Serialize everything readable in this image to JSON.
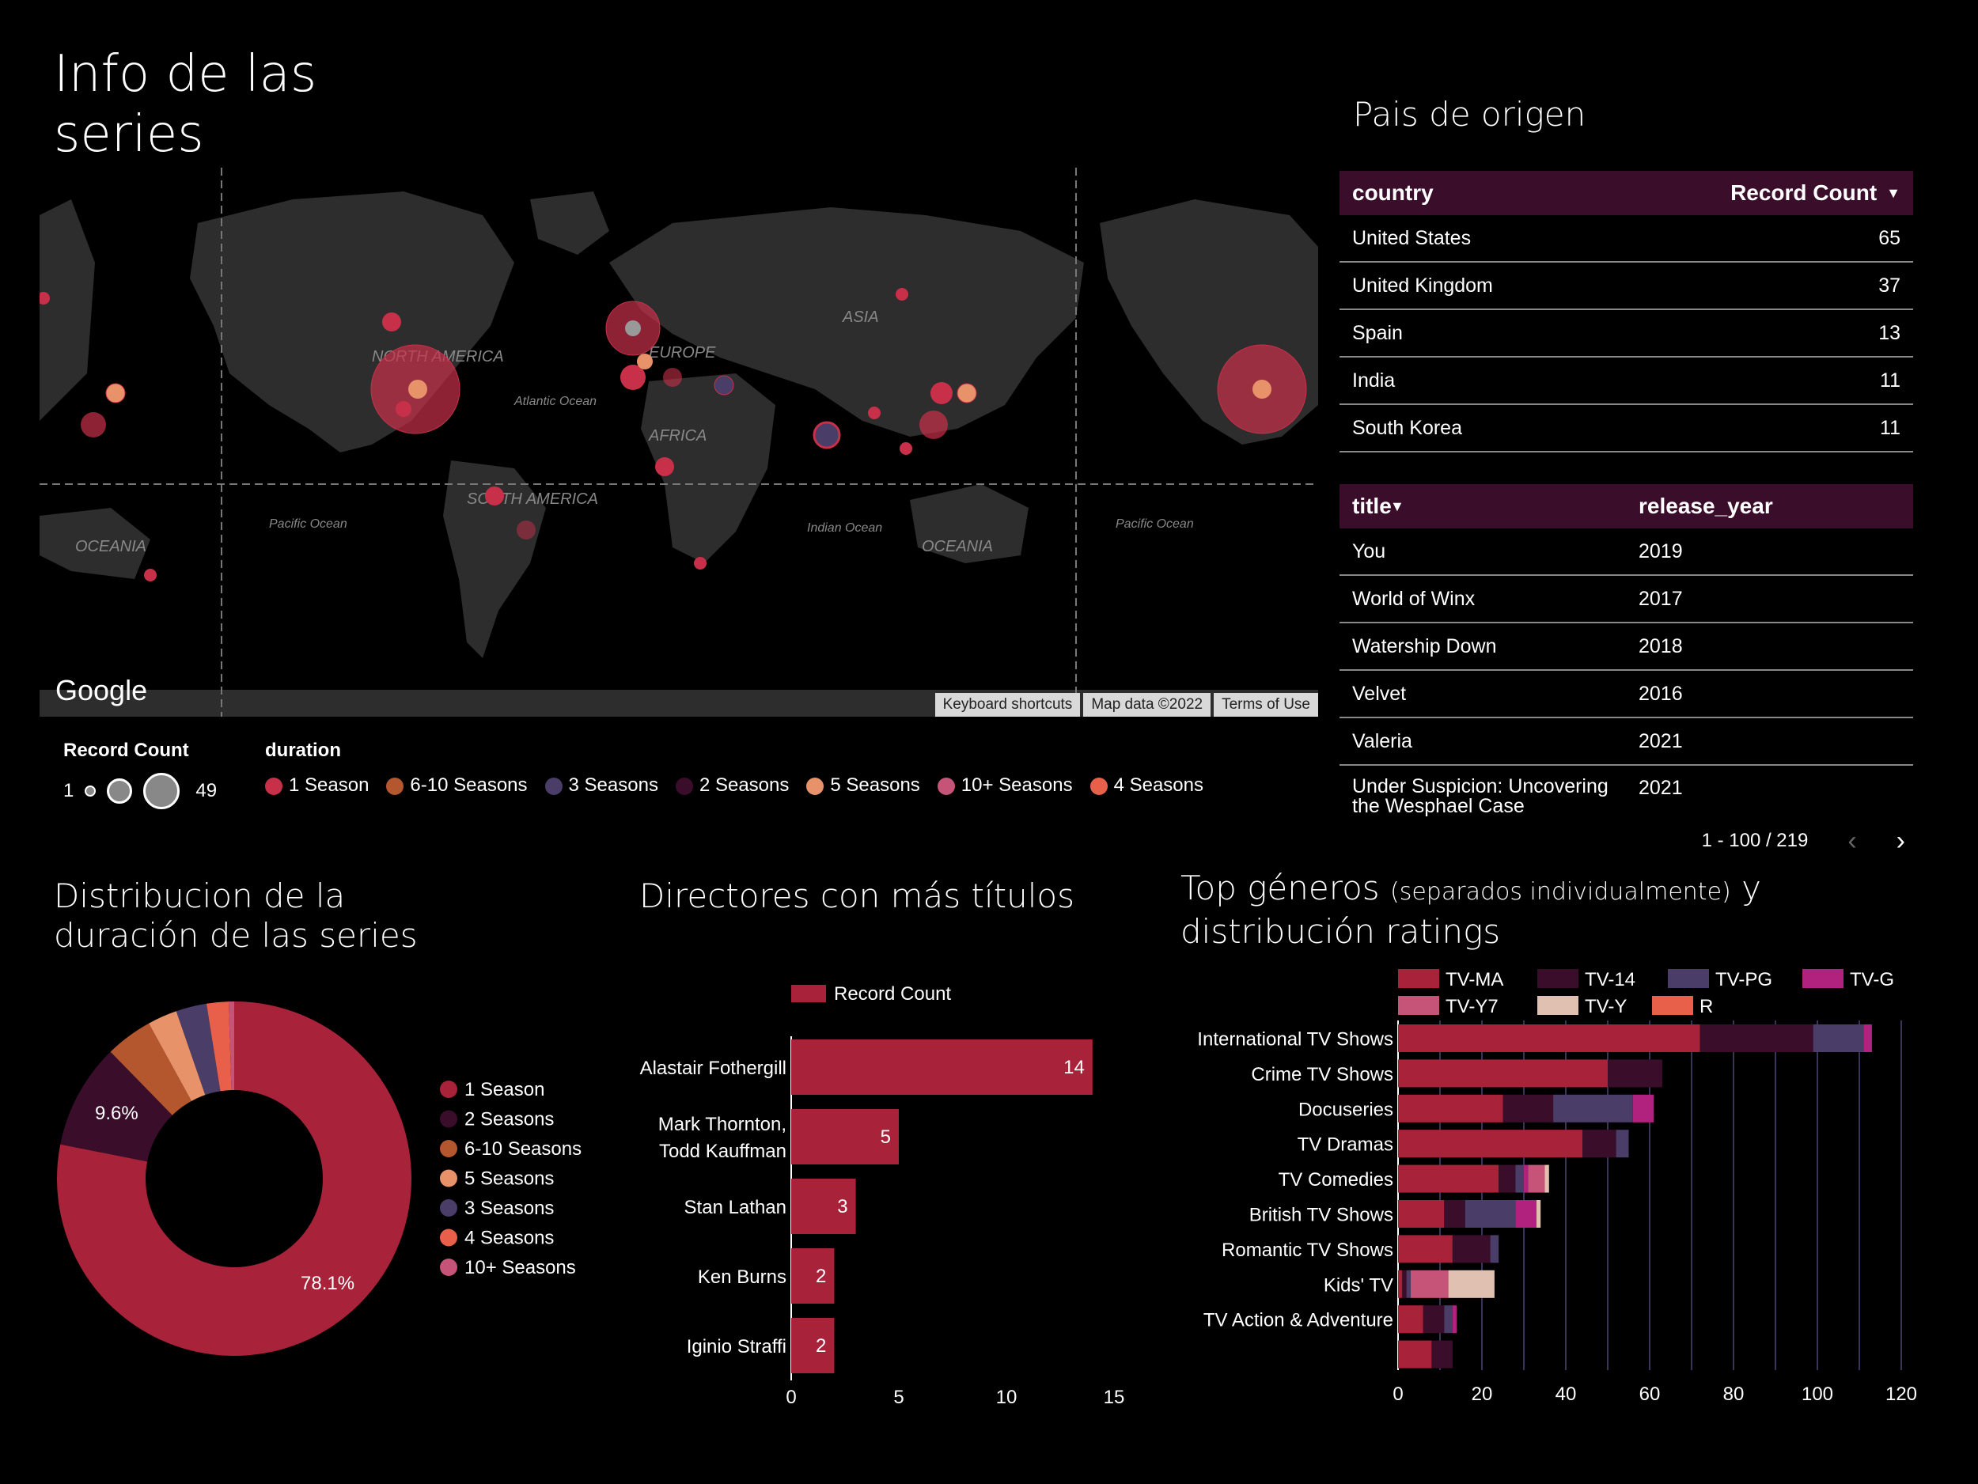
{
  "header": {
    "title": "Info de las series"
  },
  "map": {
    "labels": {
      "north_america": "NORTH AMERICA",
      "south_america": "SOUTH AMERICA",
      "europe": "EUROPE",
      "asia": "ASIA",
      "africa": "AFRICA",
      "oceania": "OCEANIA",
      "atlantic": "Atlantic Ocean",
      "pacific": "Pacific Ocean",
      "indian": "Indian Ocean"
    },
    "google": "Google",
    "footer": {
      "shortcuts": "Keyboard shortcuts",
      "mapdata": "Map data ©2022",
      "terms": "Terms of Use"
    }
  },
  "map_legend": {
    "size_title": "Record Count",
    "size_min": "1",
    "size_max": "49",
    "color_title": "duration",
    "items": [
      {
        "label": "1 Season",
        "color": "#c8304a"
      },
      {
        "label": "6-10 Seasons",
        "color": "#b4562e"
      },
      {
        "label": "3 Seasons",
        "color": "#4a3d68"
      },
      {
        "label": "2 Seasons",
        "color": "#3a0e2a"
      },
      {
        "label": "5 Seasons",
        "color": "#e8926a"
      },
      {
        "label": "10+ Seasons",
        "color": "#c65478"
      },
      {
        "label": "4 Seasons",
        "color": "#e8604a"
      }
    ]
  },
  "country_table": {
    "section_title": "Pais de origen",
    "col_country": "country",
    "col_count": "Record Count",
    "sort_icon": "caret-down-icon",
    "rows": [
      {
        "country": "United States",
        "count": "65"
      },
      {
        "country": "United Kingdom",
        "count": "37"
      },
      {
        "country": "Spain",
        "count": "13"
      },
      {
        "country": "India",
        "count": "11"
      },
      {
        "country": "South Korea",
        "count": "11"
      }
    ]
  },
  "title_table": {
    "col_title": "title",
    "col_year": "release_year",
    "rows": [
      {
        "title": "You",
        "year": "2019"
      },
      {
        "title": "World of Winx",
        "year": "2017"
      },
      {
        "title": "Watership Down",
        "year": "2018"
      },
      {
        "title": "Velvet",
        "year": "2016"
      },
      {
        "title": "Valeria",
        "year": "2021"
      },
      {
        "title": "Under Suspicion: Uncovering the Wesphael Case",
        "year": "2021"
      }
    ],
    "pagination": "1 - 100 / 219"
  },
  "donut": {
    "title": "Distribucion de la duración de las series"
  },
  "directors": {
    "title": "Directores con más títulos"
  },
  "genres": {
    "title_main": "Top géneros",
    "title_paren": "(separados individualmente)",
    "title_rest": "y",
    "title_line2": "distribución ratings"
  },
  "chart_data": [
    {
      "type": "pie",
      "title": "Distribucion de la duración de las series",
      "categories": [
        "1 Season",
        "2 Seasons",
        "6-10 Seasons",
        "5 Seasons",
        "3 Seasons",
        "4 Seasons",
        "10+ Seasons"
      ],
      "values": [
        78.1,
        9.6,
        4.3,
        2.7,
        2.8,
        2.0,
        0.5
      ],
      "labels": [
        "78.1%",
        "9.6%"
      ],
      "colors": [
        "#a8223a",
        "#3a0e2a",
        "#b4562e",
        "#e8926a",
        "#4a3d68",
        "#e8604a",
        "#c65478"
      ],
      "legend": "right"
    },
    {
      "type": "bar",
      "orientation": "horizontal",
      "title": "Directores con más títulos",
      "categories": [
        "Alastair Fothergill",
        "Mark Thornton,\nTodd Kauffman",
        "Stan Lathan",
        "Ken Burns",
        "Iginio Straffi"
      ],
      "series": [
        {
          "name": "Record Count",
          "values": [
            14,
            5,
            3,
            2,
            2
          ],
          "color": "#a8223a"
        }
      ],
      "xlim": [
        0,
        15
      ],
      "xticks": [
        "0",
        "5",
        "10",
        "15"
      ],
      "legend": "top"
    },
    {
      "type": "bar",
      "orientation": "horizontal",
      "stacked": true,
      "categories": [
        "International TV Shows",
        "Crime TV Shows",
        "Docuseries",
        "TV Dramas",
        "TV Comedies",
        "British TV Shows",
        "Romantic TV Shows",
        "Kids' TV",
        "TV Action & Adventure",
        ""
      ],
      "series": [
        {
          "name": "TV-MA",
          "color": "#a8223a",
          "values": [
            72,
            50,
            25,
            44,
            24,
            11,
            13,
            1,
            6,
            8
          ]
        },
        {
          "name": "TV-14",
          "color": "#3a0e2a",
          "values": [
            27,
            13,
            12,
            8,
            4,
            5,
            9,
            1,
            5,
            5
          ]
        },
        {
          "name": "TV-PG",
          "color": "#4a3d68",
          "values": [
            12,
            0,
            19,
            3,
            2,
            12,
            2,
            1,
            2,
            0
          ]
        },
        {
          "name": "TV-G",
          "color": "#b0227e",
          "values": [
            2,
            0,
            5,
            0,
            1,
            5,
            0,
            0,
            1,
            0
          ]
        },
        {
          "name": "TV-Y7",
          "color": "#c65478",
          "values": [
            0,
            0,
            0,
            0,
            4,
            0,
            0,
            9,
            0,
            0
          ]
        },
        {
          "name": "TV-Y",
          "color": "#e0c0b0",
          "values": [
            0,
            0,
            0,
            0,
            1,
            1,
            0,
            11,
            0,
            0
          ]
        },
        {
          "name": "R",
          "color": "#e8604a",
          "values": [
            0,
            0,
            0,
            0,
            0,
            0,
            0,
            0,
            0,
            0
          ]
        }
      ],
      "xlim": [
        0,
        120
      ],
      "xticks": [
        "0",
        "20",
        "40",
        "60",
        "80",
        "100",
        "120"
      ],
      "legend": "top"
    }
  ]
}
